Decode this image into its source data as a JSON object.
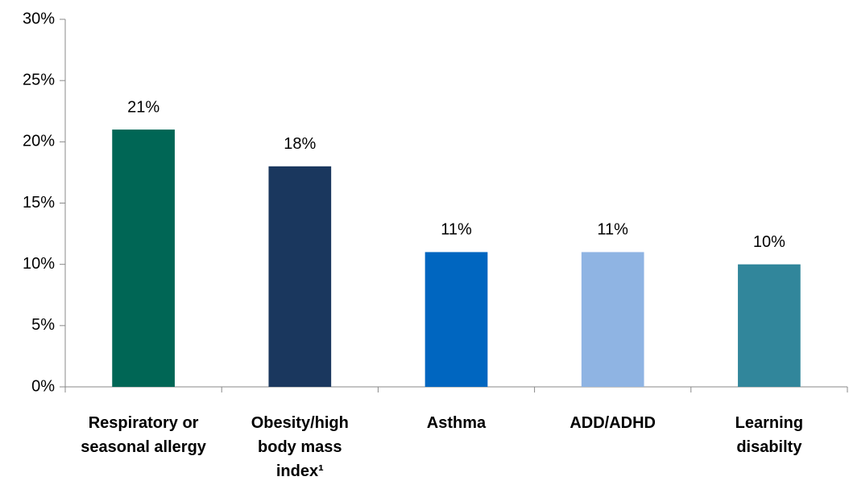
{
  "chart_data": {
    "type": "bar",
    "categories": [
      "Respiratory or\nseasonal allergy",
      "Obesity/high\nbody mass\nindex¹",
      "Asthma",
      "ADD/ADHD",
      "Learning\ndisabilty"
    ],
    "values": [
      21,
      18,
      11,
      11,
      10
    ],
    "value_labels": [
      "21%",
      "18%",
      "11%",
      "11%",
      "10%"
    ],
    "colors": [
      "#006655",
      "#1a375e",
      "#0066c0",
      "#8fb4e3",
      "#31869b"
    ],
    "ylim": [
      0,
      30
    ],
    "yticks": [
      {
        "value": 0,
        "label": "0%"
      },
      {
        "value": 5,
        "label": "5%"
      },
      {
        "value": 10,
        "label": "10%"
      },
      {
        "value": 15,
        "label": "15%"
      },
      {
        "value": 20,
        "label": "20%"
      },
      {
        "value": 25,
        "label": "25%"
      },
      {
        "value": 30,
        "label": "30%"
      }
    ],
    "grid": false
  }
}
